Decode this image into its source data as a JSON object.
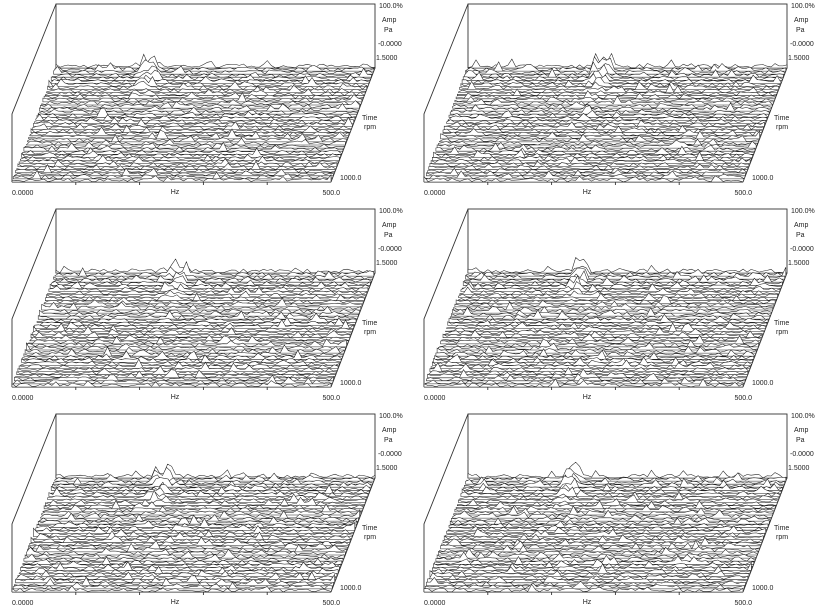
{
  "panels": [
    {
      "x_start": "0.0000",
      "x_unit": "Hz",
      "x_end": "500.0",
      "z_max": "100.0%",
      "z_unit": "Amp",
      "z_subunit": "Pa",
      "z_ref": "-0.0000",
      "time_start": "1.5000",
      "time_label": "Time",
      "time_unit": "rpm",
      "time_end": "1000.0"
    },
    {
      "x_start": "0.0000",
      "x_unit": "Hz",
      "x_end": "500.0",
      "z_max": "100.0%",
      "z_unit": "Amp",
      "z_subunit": "Pa",
      "z_ref": "-0.0000",
      "time_start": "1.5000",
      "time_label": "Time",
      "time_unit": "rpm",
      "time_end": "1000.0"
    },
    {
      "x_start": "0.0000",
      "x_unit": "Hz",
      "x_end": "500.0",
      "z_max": "100.0%",
      "z_unit": "Amp",
      "z_subunit": "Pa",
      "z_ref": "-0.0000",
      "time_start": "1.5000",
      "time_label": "Time",
      "time_unit": "rpm",
      "time_end": "1000.0"
    },
    {
      "x_start": "0.0000",
      "x_unit": "Hz",
      "x_end": "500.0",
      "z_max": "100.0%",
      "z_unit": "Amp",
      "z_subunit": "Pa",
      "z_ref": "-0.0000",
      "time_start": "1.5000",
      "time_label": "Time",
      "time_unit": "rpm",
      "time_end": "1000.0"
    },
    {
      "x_start": "0.0000",
      "x_unit": "Hz",
      "x_end": "500.0",
      "z_max": "100.0%",
      "z_unit": "Amp",
      "z_subunit": "Pa",
      "z_ref": "-0.0000",
      "time_start": "1.5000",
      "time_label": "Time",
      "time_unit": "rpm",
      "time_end": "1000.0"
    },
    {
      "x_start": "0.0000",
      "x_unit": "Hz",
      "x_end": "500.0",
      "z_max": "100.0%",
      "z_unit": "Amp",
      "z_subunit": "Pa",
      "z_ref": "-0.0000",
      "time_start": "1.5000",
      "time_label": "Time",
      "time_unit": "rpm",
      "time_end": "1000.0"
    }
  ]
}
